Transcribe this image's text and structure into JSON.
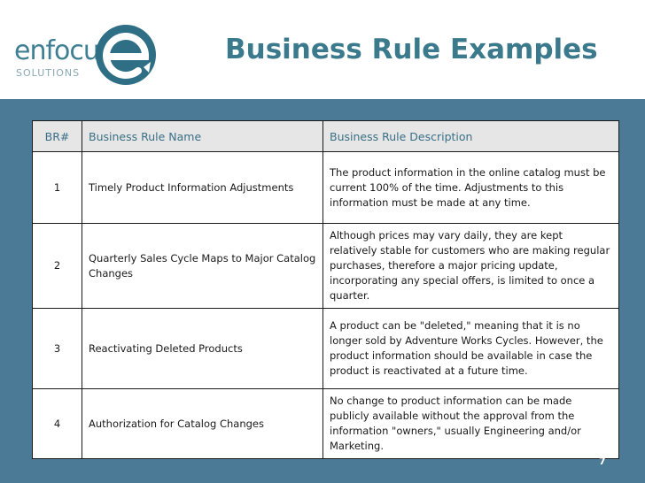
{
  "logo": {
    "word": "enfocus",
    "sub": "SOLUTIONS",
    "icon": "enfocus-e-logo-icon"
  },
  "slide": {
    "title": "Business Rule Examples",
    "page_number": "7"
  },
  "table": {
    "headers": [
      "BR#",
      "Business Rule Name",
      "Business Rule Description"
    ],
    "rows": [
      {
        "num": "1",
        "name": "Timely Product Information Adjustments",
        "desc": "The product information in the online catalog must be current 100% of the time. Adjustments to this information must be made at any time."
      },
      {
        "num": "2",
        "name": "Quarterly Sales Cycle Maps to Major Catalog Changes",
        "desc": "Although prices may vary daily, they are kept relatively stable for customers who are making regular purchases, therefore a major pricing update, incorporating any special offers, is limited to once a quarter."
      },
      {
        "num": "3",
        "name": "Reactivating Deleted Products",
        "desc": "A product can be \"deleted,\" meaning that it is no longer sold by Adventure Works Cycles. However, the product information should be available in case the product is reactivated at a future time."
      },
      {
        "num": "4",
        "name": "Authorization for Catalog Changes",
        "desc": "No change to product information can be made publicly available without the approval from the information \"owners,\" usually Engineering and/or Marketing."
      }
    ]
  },
  "colors": {
    "band": "#4a7a95",
    "title": "#3a7a8c",
    "header_cell": "#e6e6e6",
    "header_text": "#3a6f86"
  }
}
